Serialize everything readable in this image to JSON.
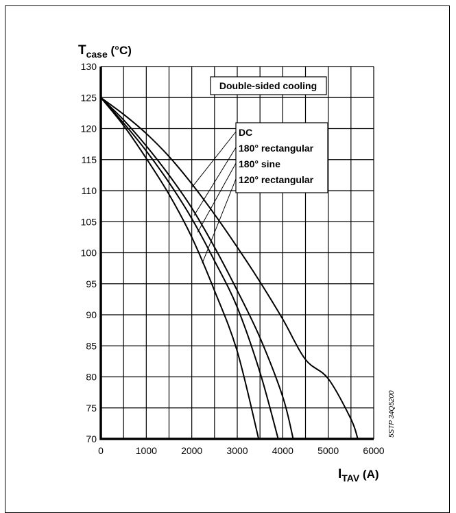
{
  "chart_data": {
    "type": "line",
    "ylabel_main": "T",
    "ylabel_sub": "case",
    "ylabel_unit": " (°C)",
    "xlabel_main": "I",
    "xlabel_sub": "TAV",
    "xlabel_unit": " (A)",
    "xlim": [
      0,
      6000
    ],
    "ylim": [
      70,
      130
    ],
    "xticks": [
      0,
      1000,
      2000,
      3000,
      4000,
      5000,
      6000
    ],
    "yticks": [
      70,
      75,
      80,
      85,
      90,
      95,
      100,
      105,
      110,
      115,
      120,
      125,
      130
    ],
    "grid": true,
    "annotation_box": "Double-sided cooling",
    "legend_labels": [
      "DC",
      "180° rectangular",
      "180° sine",
      "120° rectangular"
    ],
    "side_code": "5STP 34Q5200",
    "series": [
      {
        "name": "DC",
        "x": [
          0,
          500,
          1000,
          1500,
          2000,
          2500,
          3000,
          3500,
          4000,
          4500,
          5000,
          5500,
          5650
        ],
        "y": [
          125,
          122.3,
          119.2,
          115.5,
          111.1,
          106.2,
          100.9,
          95.3,
          89.3,
          82.8,
          79.7,
          73.2,
          70
        ]
      },
      {
        "name": "180° rectangular",
        "x": [
          0,
          500,
          1000,
          1500,
          2000,
          2500,
          3000,
          3500,
          4000,
          4230
        ],
        "y": [
          125,
          121.4,
          117.2,
          112.5,
          107.2,
          100.9,
          93.9,
          86.3,
          76.8,
          70
        ]
      },
      {
        "name": "180° sine",
        "x": [
          0,
          500,
          1000,
          1500,
          2000,
          2500,
          3000,
          3500,
          3900
        ],
        "y": [
          125,
          120.9,
          116.4,
          111.3,
          105.5,
          98.7,
          91.2,
          80.7,
          70
        ]
      },
      {
        "name": "120° rectangular",
        "x": [
          0,
          500,
          1000,
          1500,
          2000,
          2500,
          3000,
          3470
        ],
        "y": [
          125,
          120.5,
          115.2,
          109.4,
          102.5,
          93.9,
          84.1,
          70
        ]
      }
    ]
  }
}
